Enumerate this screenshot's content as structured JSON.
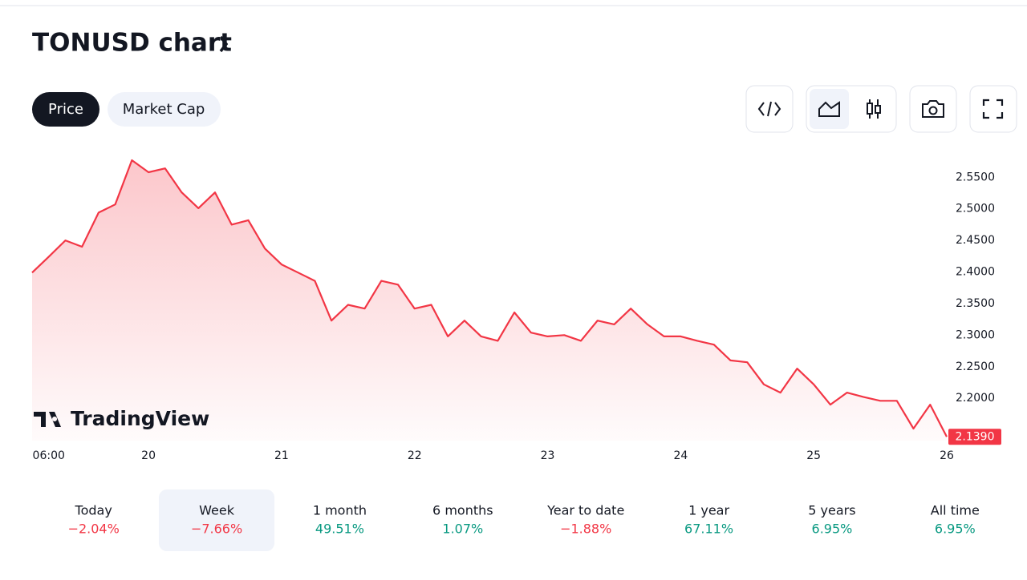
{
  "header": {
    "title": "TONUSD chart"
  },
  "tabs": [
    "Price",
    "Market Cap"
  ],
  "chart_data": {
    "type": "area",
    "color": "#f23645",
    "x": [
      3,
      6,
      9,
      12,
      15,
      18,
      21,
      24,
      27,
      30,
      33,
      36,
      39,
      42,
      45,
      48,
      51,
      54,
      57,
      60,
      63,
      66,
      69,
      72,
      75,
      78,
      81,
      84,
      87,
      90,
      93,
      96,
      99,
      102,
      105,
      108,
      111,
      114,
      117,
      120,
      123,
      126,
      129,
      132,
      135,
      138,
      141,
      144,
      147,
      150,
      153,
      156,
      159,
      162,
      165,
      168
    ],
    "values": [
      2.399,
      2.424,
      2.45,
      2.44,
      2.494,
      2.507,
      2.577,
      2.558,
      2.564,
      2.526,
      2.501,
      2.526,
      2.475,
      2.482,
      2.437,
      2.412,
      2.399,
      2.386,
      2.323,
      2.348,
      2.342,
      2.386,
      2.38,
      2.342,
      2.348,
      2.298,
      2.323,
      2.298,
      2.291,
      2.336,
      2.304,
      2.298,
      2.3,
      2.291,
      2.323,
      2.317,
      2.342,
      2.317,
      2.298,
      2.298,
      2.291,
      2.285,
      2.26,
      2.257,
      2.222,
      2.209,
      2.247,
      2.222,
      2.19,
      2.209,
      2.202,
      2.196,
      2.196,
      2.152,
      2.19,
      2.139
    ],
    "xlim": [
      3,
      168
    ],
    "ylim": [
      2.133,
      2.596
    ],
    "yticks": [
      {
        "value": 2.55,
        "label": "2.5500"
      },
      {
        "value": 2.5,
        "label": "2.5000"
      },
      {
        "value": 2.45,
        "label": "2.4500"
      },
      {
        "value": 2.4,
        "label": "2.4000"
      },
      {
        "value": 2.35,
        "label": "2.3500"
      },
      {
        "value": 2.3,
        "label": "2.3000"
      },
      {
        "value": 2.25,
        "label": "2.2500"
      },
      {
        "value": 2.2,
        "label": "2.2000"
      }
    ],
    "xticks": [
      {
        "value": 6,
        "label": "06:00"
      },
      {
        "value": 24,
        "label": "20"
      },
      {
        "value": 48,
        "label": "21"
      },
      {
        "value": 72,
        "label": "22"
      },
      {
        "value": 96,
        "label": "23"
      },
      {
        "value": 120,
        "label": "24"
      },
      {
        "value": 144,
        "label": "25"
      },
      {
        "value": 168,
        "label": "26"
      }
    ],
    "last_value_label": "2.1390",
    "watermark": "TradingView"
  },
  "periods": [
    {
      "label": "Today",
      "change": "−2.04%",
      "direction": "down"
    },
    {
      "label": "Week",
      "change": "−7.66%",
      "direction": "down"
    },
    {
      "label": "1 month",
      "change": "49.51%",
      "direction": "up"
    },
    {
      "label": "6 months",
      "change": "1.07%",
      "direction": "up"
    },
    {
      "label": "Year to date",
      "change": "−1.88%",
      "direction": "down"
    },
    {
      "label": "1 year",
      "change": "67.11%",
      "direction": "up"
    },
    {
      "label": "5 years",
      "change": "6.95%",
      "direction": "up"
    },
    {
      "label": "All time",
      "change": "6.95%",
      "direction": "up"
    }
  ]
}
